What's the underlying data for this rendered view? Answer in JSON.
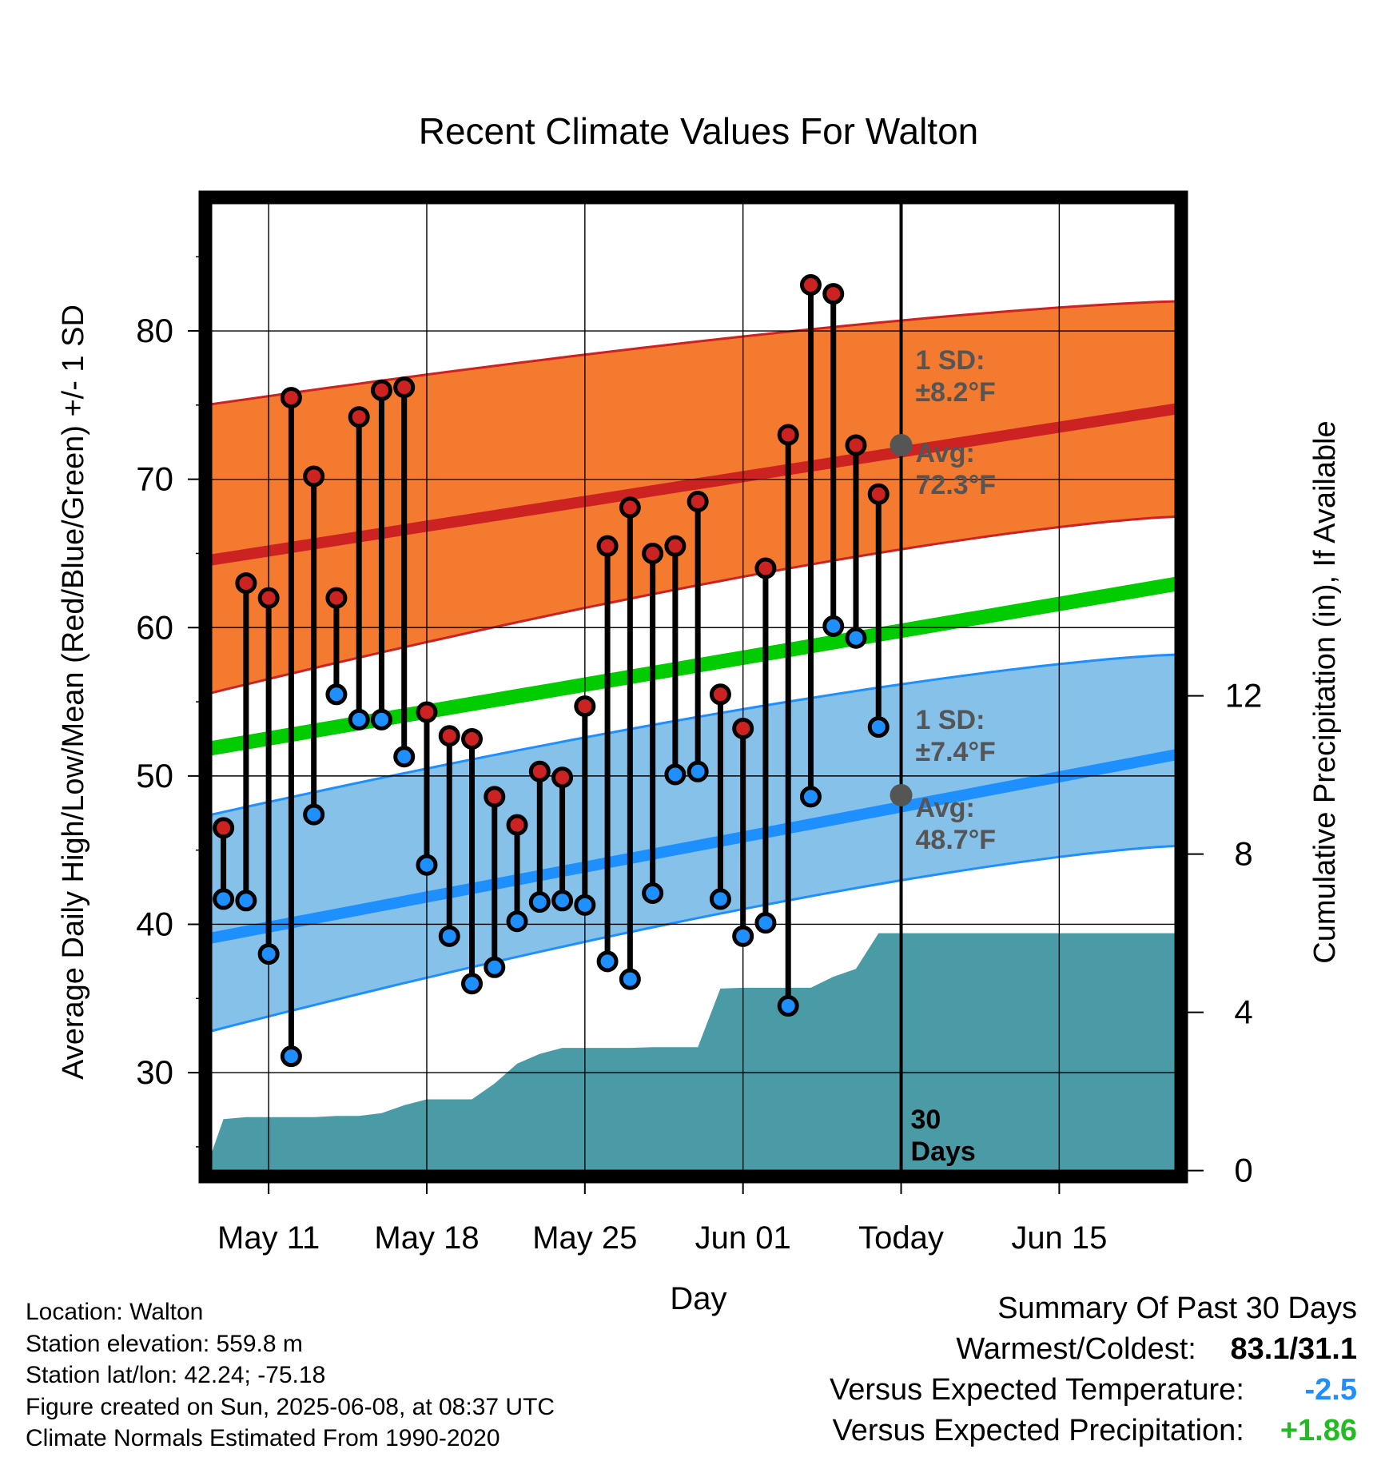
{
  "chart_data": {
    "type": "line",
    "title": "Recent Climate Values For Walton",
    "xlabel": "Day",
    "ylabel": "Average Daily High/Low/Mean (Red/Blue/Green) +/- 1 SD",
    "y2label": "Cumulative Precipitation (in), If Available",
    "xlim": [
      -2.8,
      40.4
    ],
    "ylim": [
      23.0,
      89.0
    ],
    "y2lim": [
      -0.15,
      24.6
    ],
    "x_ticks": [
      {
        "x": 0,
        "label": "May 11"
      },
      {
        "x": 7,
        "label": "May 18"
      },
      {
        "x": 14,
        "label": "May 25"
      },
      {
        "x": 21,
        "label": "Jun 01"
      },
      {
        "x": 28,
        "label": "Today"
      },
      {
        "x": 35,
        "label": "Jun 15"
      }
    ],
    "y_ticks": [
      30,
      40,
      50,
      60,
      70,
      80
    ],
    "y2_ticks": [
      0,
      4,
      8,
      12
    ],
    "grid": true,
    "today_x": 28,
    "today_label": [
      "30",
      "Days"
    ],
    "normals": {
      "high_mean": [
        64.5,
        74.8
      ],
      "high_upper": [
        75.0,
        82.0
      ],
      "high_lower": [
        55.5,
        67.5
      ],
      "mean_mean": [
        51.8,
        63.0
      ],
      "low_mean": [
        39.0,
        51.5
      ],
      "low_upper": [
        47.3,
        58.2
      ],
      "low_lower": [
        32.7,
        45.3
      ]
    },
    "today_normals": {
      "high_avg": 72.3,
      "low_avg": 48.7,
      "high_sd_lines": [
        "1 SD:",
        "±8.2°F"
      ],
      "high_avg_lines": [
        "Avg:",
        "72.3°F"
      ],
      "low_sd_lines": [
        "1 SD:",
        "±7.4°F"
      ],
      "low_avg_lines": [
        "Avg:",
        "48.7°F"
      ]
    },
    "days": {
      "x": [
        -2,
        -1,
        0,
        1,
        2,
        3,
        4,
        5,
        6,
        7,
        8,
        9,
        10,
        11,
        12,
        13,
        14,
        15,
        16,
        17,
        18,
        19,
        20,
        21,
        22,
        23,
        24,
        25,
        26,
        27
      ],
      "high": [
        46.5,
        63.0,
        62.0,
        75.5,
        70.2,
        62.0,
        74.2,
        76.0,
        76.2,
        54.3,
        52.7,
        52.5,
        48.6,
        46.7,
        50.3,
        49.9,
        54.7,
        65.5,
        68.1,
        65.0,
        65.5,
        68.5,
        55.5,
        53.2,
        64.0,
        73.0,
        83.1,
        82.5,
        72.3,
        69.0
      ],
      "low": [
        41.7,
        41.6,
        38.0,
        31.1,
        47.4,
        55.5,
        53.8,
        53.8,
        51.3,
        44.0,
        39.2,
        36.0,
        37.1,
        40.2,
        41.5,
        41.6,
        41.3,
        37.5,
        36.3,
        42.1,
        50.1,
        50.3,
        41.7,
        39.2,
        40.1,
        34.5,
        48.6,
        60.1,
        59.3,
        53.3
      ]
    },
    "precip": {
      "x": [
        -2.8,
        -2,
        -1,
        0,
        1,
        2,
        3,
        4,
        5,
        6,
        7,
        8,
        9,
        10,
        11,
        12,
        13,
        14,
        15,
        16,
        17,
        18,
        19,
        20,
        21,
        22,
        23,
        24,
        25,
        26,
        27,
        28,
        40.4
      ],
      "y": [
        0.0,
        1.3,
        1.35,
        1.35,
        1.35,
        1.35,
        1.38,
        1.38,
        1.45,
        1.65,
        1.8,
        1.8,
        1.8,
        2.2,
        2.7,
        2.95,
        3.1,
        3.1,
        3.1,
        3.1,
        3.12,
        3.12,
        3.12,
        4.6,
        4.62,
        4.62,
        4.62,
        4.62,
        4.9,
        5.1,
        6.0,
        6.0,
        6.0
      ]
    },
    "colors": {
      "high_band": "#f47a30",
      "high_line": "#cc2222",
      "low_band": "#85c1e9",
      "low_line": "#1e8fff",
      "mean_line": "#00cc00",
      "precip_fill": "#4a9ba5",
      "high_marker": "#cc2222",
      "low_marker": "#1e8fff",
      "annotation_text": "#555555"
    }
  },
  "info": {
    "location": "Location: Walton",
    "elevation": "Station elevation: 559.8 m",
    "latlon": "Station lat/lon: 42.24; -75.18",
    "created": "Figure created on Sun, 2025-06-08, at 08:37 UTC",
    "normals": "Climate Normals Estimated From 1990-2020"
  },
  "summary": {
    "title": "Summary Of Past 30 Days",
    "warm_cold_label": "Warmest/Coldest:",
    "warm_cold_value": "83.1/31.1",
    "temp_label": "Versus Expected Temperature:",
    "temp_value": "-2.5",
    "temp_color": "#1e8fff",
    "precip_label": "Versus Expected Precipitation:",
    "precip_value": "+1.86",
    "precip_color": "#22bb22"
  }
}
